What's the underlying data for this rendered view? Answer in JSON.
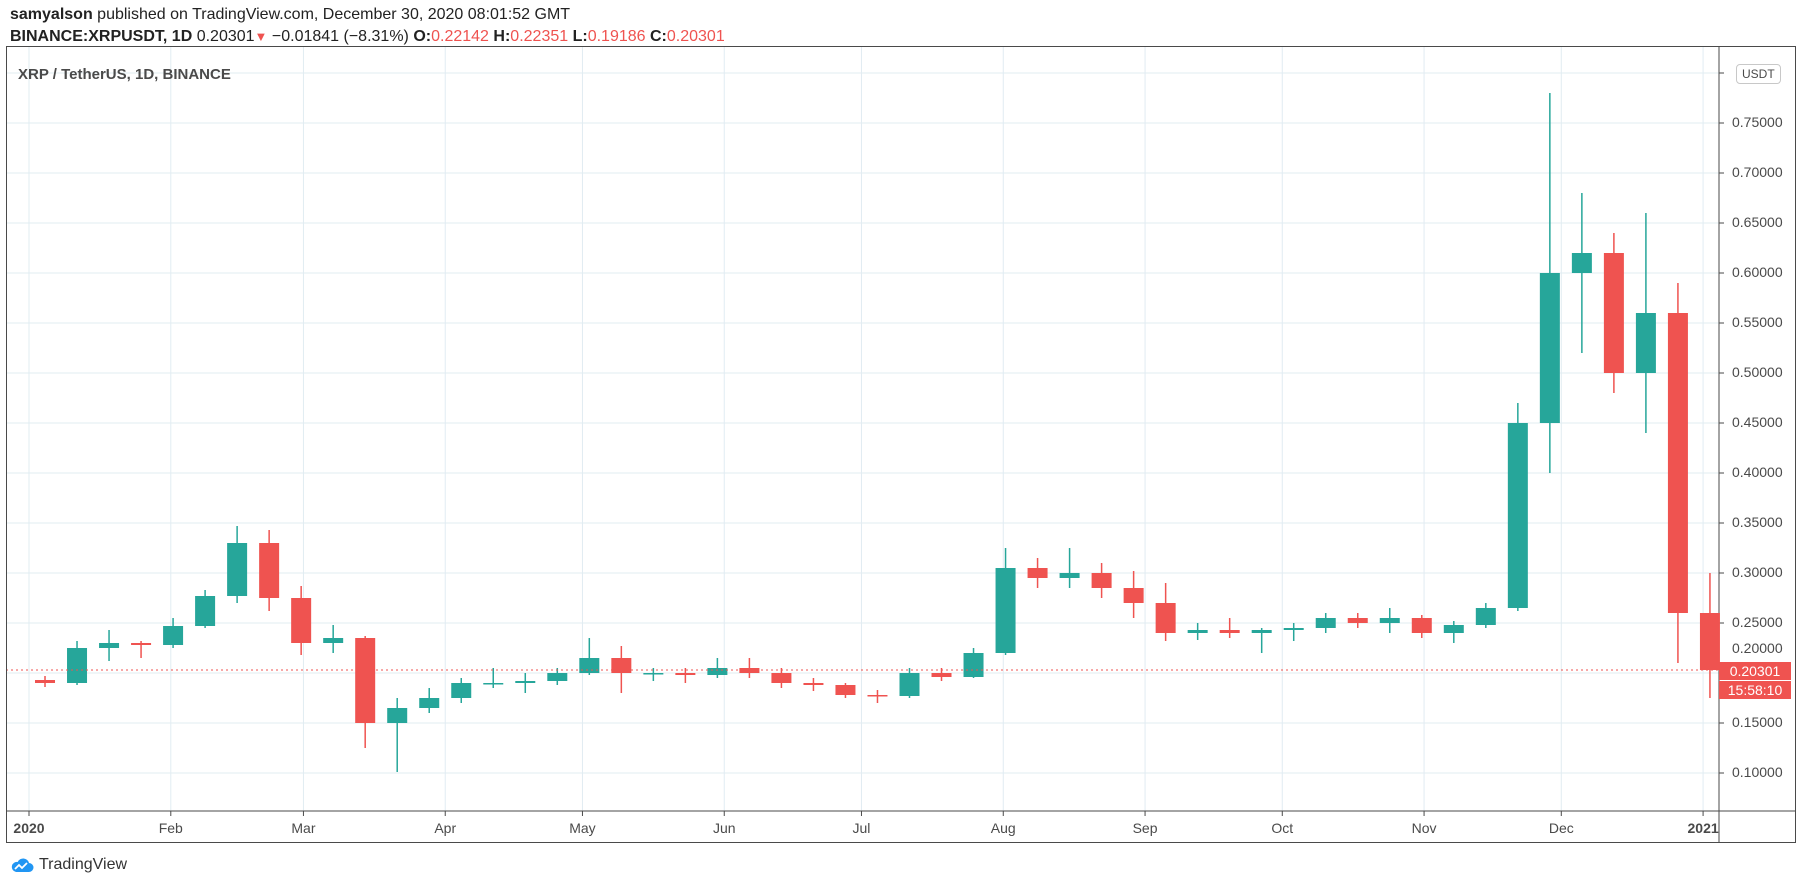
{
  "header": {
    "author": "samyalson",
    "published": "published on TradingView.com, December 30, 2020 08:01:52 GMT",
    "symbol": "BINANCE:XRPUSDT, 1D",
    "last": "0.20301",
    "change": "−0.01841 (−8.31%)",
    "o_label": "O:",
    "o": "0.22142",
    "h_label": "H:",
    "h": "0.22351",
    "l_label": "L:",
    "l": "0.19186",
    "c_label": "C:",
    "c": "0.20301"
  },
  "chart_title": "XRP / TetherUS, 1D, BINANCE",
  "currency_button": "USDT",
  "current_price_label": "0.20301",
  "countdown": "15:58:10",
  "footer_logo": "TradingView",
  "colors": {
    "up": "#26a69a",
    "down": "#ef5350",
    "grid": "#e1ecf2",
    "accent": "#2962ff"
  },
  "chart_data": {
    "type": "candlestick",
    "note_resolution": "weekly approximation of daily candles",
    "ylim": [
      0.05,
      0.82
    ],
    "grid": true,
    "y_ticks": [
      "0.10000",
      "0.15000",
      "0.20000",
      "0.25000",
      "0.30000",
      "0.35000",
      "0.40000",
      "0.45000",
      "0.50000",
      "0.55000",
      "0.60000",
      "0.65000",
      "0.70000",
      "0.75000"
    ],
    "x_ticks": [
      {
        "label": "2020",
        "date": "2020-01-01",
        "bold": true
      },
      {
        "label": "Feb",
        "date": "2020-02-01"
      },
      {
        "label": "Mar",
        "date": "2020-03-01"
      },
      {
        "label": "Apr",
        "date": "2020-04-01"
      },
      {
        "label": "May",
        "date": "2020-05-01"
      },
      {
        "label": "Jun",
        "date": "2020-06-01"
      },
      {
        "label": "Jul",
        "date": "2020-07-01"
      },
      {
        "label": "Aug",
        "date": "2020-08-01"
      },
      {
        "label": "Sep",
        "date": "2020-09-01"
      },
      {
        "label": "Oct",
        "date": "2020-10-01"
      },
      {
        "label": "Nov",
        "date": "2020-11-01"
      },
      {
        "label": "Dec",
        "date": "2020-12-01"
      },
      {
        "label": "2021",
        "date": "2021-01-01",
        "bold": true
      }
    ],
    "current_price": 0.20301,
    "candles": [
      [
        "2020-01-01",
        0.193,
        0.197,
        0.186,
        0.19
      ],
      [
        "2020-01-08",
        0.19,
        0.232,
        0.188,
        0.225
      ],
      [
        "2020-01-15",
        0.225,
        0.243,
        0.212,
        0.23
      ],
      [
        "2020-01-22",
        0.23,
        0.232,
        0.215,
        0.228
      ],
      [
        "2020-01-29",
        0.228,
        0.255,
        0.225,
        0.247
      ],
      [
        "2020-02-05",
        0.247,
        0.283,
        0.245,
        0.277
      ],
      [
        "2020-02-12",
        0.277,
        0.347,
        0.27,
        0.33
      ],
      [
        "2020-02-19",
        0.33,
        0.343,
        0.262,
        0.275
      ],
      [
        "2020-02-26",
        0.275,
        0.287,
        0.218,
        0.23
      ],
      [
        "2020-03-04",
        0.23,
        0.248,
        0.22,
        0.235
      ],
      [
        "2020-03-11",
        0.235,
        0.237,
        0.125,
        0.15
      ],
      [
        "2020-03-18",
        0.15,
        0.175,
        0.101,
        0.165
      ],
      [
        "2020-03-25",
        0.165,
        0.185,
        0.16,
        0.175
      ],
      [
        "2020-04-01",
        0.175,
        0.195,
        0.17,
        0.19
      ],
      [
        "2020-04-08",
        0.19,
        0.205,
        0.185,
        0.19
      ],
      [
        "2020-04-15",
        0.19,
        0.2,
        0.18,
        0.192
      ],
      [
        "2020-04-22",
        0.192,
        0.205,
        0.188,
        0.2
      ],
      [
        "2020-04-29",
        0.2,
        0.235,
        0.198,
        0.215
      ],
      [
        "2020-05-06",
        0.215,
        0.227,
        0.18,
        0.2
      ],
      [
        "2020-05-13",
        0.2,
        0.205,
        0.192,
        0.2
      ],
      [
        "2020-05-20",
        0.2,
        0.205,
        0.19,
        0.198
      ],
      [
        "2020-05-27",
        0.198,
        0.215,
        0.195,
        0.205
      ],
      [
        "2020-06-03",
        0.205,
        0.215,
        0.195,
        0.2
      ],
      [
        "2020-06-10",
        0.2,
        0.205,
        0.185,
        0.19
      ],
      [
        "2020-06-17",
        0.19,
        0.195,
        0.182,
        0.188
      ],
      [
        "2020-06-24",
        0.188,
        0.19,
        0.175,
        0.178
      ],
      [
        "2020-07-01",
        0.178,
        0.183,
        0.17,
        0.177
      ],
      [
        "2020-07-08",
        0.177,
        0.205,
        0.175,
        0.2
      ],
      [
        "2020-07-15",
        0.2,
        0.205,
        0.192,
        0.196
      ],
      [
        "2020-07-22",
        0.196,
        0.225,
        0.195,
        0.22
      ],
      [
        "2020-07-29",
        0.22,
        0.325,
        0.218,
        0.305
      ],
      [
        "2020-08-05",
        0.305,
        0.315,
        0.285,
        0.295
      ],
      [
        "2020-08-12",
        0.295,
        0.325,
        0.285,
        0.3
      ],
      [
        "2020-08-19",
        0.3,
        0.31,
        0.275,
        0.285
      ],
      [
        "2020-08-26",
        0.285,
        0.302,
        0.255,
        0.27
      ],
      [
        "2020-09-02",
        0.27,
        0.29,
        0.232,
        0.24
      ],
      [
        "2020-09-09",
        0.24,
        0.25,
        0.233,
        0.243
      ],
      [
        "2020-09-16",
        0.243,
        0.255,
        0.235,
        0.24
      ],
      [
        "2020-09-23",
        0.24,
        0.245,
        0.22,
        0.243
      ],
      [
        "2020-09-30",
        0.243,
        0.25,
        0.232,
        0.245
      ],
      [
        "2020-10-07",
        0.245,
        0.26,
        0.24,
        0.255
      ],
      [
        "2020-10-14",
        0.255,
        0.26,
        0.245,
        0.25
      ],
      [
        "2020-10-21",
        0.25,
        0.265,
        0.24,
        0.255
      ],
      [
        "2020-10-28",
        0.255,
        0.258,
        0.235,
        0.24
      ],
      [
        "2020-11-04",
        0.24,
        0.252,
        0.23,
        0.248
      ],
      [
        "2020-11-11",
        0.248,
        0.27,
        0.245,
        0.265
      ],
      [
        "2020-11-18",
        0.265,
        0.47,
        0.262,
        0.45
      ],
      [
        "2020-11-25",
        0.45,
        0.78,
        0.4,
        0.6
      ],
      [
        "2020-12-02",
        0.6,
        0.68,
        0.52,
        0.62
      ],
      [
        "2020-12-09",
        0.62,
        0.64,
        0.48,
        0.5
      ],
      [
        "2020-12-16",
        0.5,
        0.66,
        0.44,
        0.56
      ],
      [
        "2020-12-23",
        0.56,
        0.59,
        0.21,
        0.26
      ],
      [
        "2020-12-30",
        0.26,
        0.3,
        0.175,
        0.203
      ]
    ]
  }
}
